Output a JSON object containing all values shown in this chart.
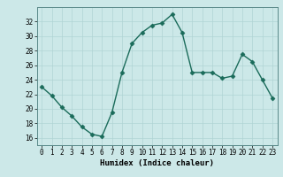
{
  "x": [
    0,
    1,
    2,
    3,
    4,
    5,
    6,
    7,
    8,
    9,
    10,
    11,
    12,
    13,
    14,
    15,
    16,
    17,
    18,
    19,
    20,
    21,
    22,
    23
  ],
  "y": [
    23.0,
    21.8,
    20.2,
    19.0,
    17.5,
    16.5,
    16.2,
    19.5,
    25.0,
    29.0,
    30.5,
    31.5,
    31.8,
    33.0,
    30.5,
    25.0,
    25.0,
    25.0,
    24.2,
    24.5,
    27.5,
    26.5,
    24.0,
    21.5
  ],
  "line_color": "#1a6b5a",
  "marker": "D",
  "marker_size": 2.5,
  "bg_color": "#cce8e8",
  "grid_color": "#b0d4d4",
  "xlabel": "Humidex (Indice chaleur)",
  "xlim": [
    -0.5,
    23.5
  ],
  "ylim": [
    15,
    34
  ],
  "yticks": [
    16,
    18,
    20,
    22,
    24,
    26,
    28,
    30,
    32
  ],
  "xticks": [
    0,
    1,
    2,
    3,
    4,
    5,
    6,
    7,
    8,
    9,
    10,
    11,
    12,
    13,
    14,
    15,
    16,
    17,
    18,
    19,
    20,
    21,
    22,
    23
  ],
  "tick_fontsize": 5.5,
  "label_fontsize": 6.5,
  "linewidth": 1.0
}
